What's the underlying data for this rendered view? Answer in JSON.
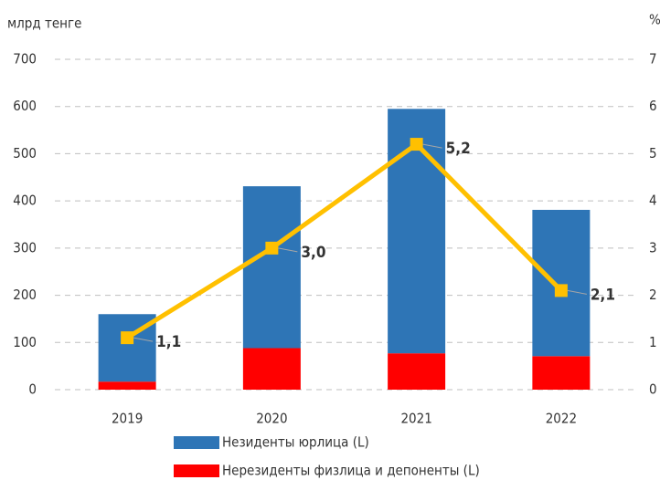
{
  "chart_data": {
    "type": "bar_line",
    "ylabel": "млрд тенге",
    "y2label": "%",
    "categories": [
      "2019",
      "2020",
      "2021",
      "2022"
    ],
    "series": [
      {
        "name": "Незиденты юрлица (L)",
        "color": "#2e75b6",
        "type": "bar",
        "stack": "segment",
        "values": [
          143,
          343,
          518,
          310
        ]
      },
      {
        "name": "Нерезиденты физлица и депоненты (L)",
        "color": "#ff0000",
        "type": "bar",
        "stack": "base",
        "values": [
          17,
          88,
          77,
          71
        ]
      },
      {
        "color": "#ffc000",
        "type": "line",
        "axis": "y2",
        "values": [
          1.1,
          3.0,
          5.2,
          2.1
        ],
        "value_labels": [
          "1,1",
          "3,0",
          "5,2",
          "2,1"
        ]
      }
    ],
    "ylim": [
      0,
      700
    ],
    "yticks": [
      0,
      100,
      200,
      300,
      400,
      500,
      600,
      700
    ],
    "y2lim": [
      0,
      7
    ],
    "y2ticks": [
      0,
      1,
      2,
      3,
      4,
      5,
      6,
      7
    ],
    "grid": true
  }
}
